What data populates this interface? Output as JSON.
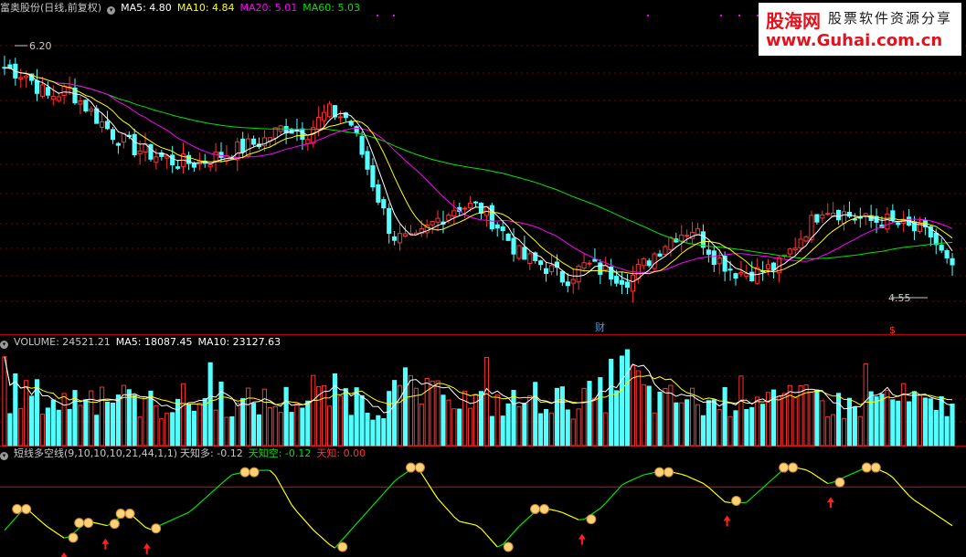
{
  "price_header": {
    "title": "富奥股份(日线,前复权)",
    "ma5": "MA5: 4.80",
    "ma10": "MA10: 4.84",
    "ma20": "MA20: 5.01",
    "ma60": "MA60: 5.03"
  },
  "volume_header": {
    "title": "VOLUME: 24521.21",
    "ma5": "MA5: 18087.45",
    "ma10": "MA10: 23127.63"
  },
  "indicator_header": {
    "title": "短线多空线(9,10,10,10,21,44,1,1)",
    "duo": "天知多: -0.12",
    "kong": "天知空: -0.12",
    "zhi": "天知: 0.00"
  },
  "annotations": {
    "high_label": "6.20",
    "low_label": "4.55",
    "cai_marker": "财",
    "dollar_marker": "$"
  },
  "watermark": {
    "brand": "股海网",
    "slogan": "股票软件资源分享",
    "url": "www.Guhai.com.cn"
  },
  "colors": {
    "up": "#ff3232",
    "down": "#54ffff",
    "ma5": "#ffffff",
    "ma10": "#ffff00",
    "ma20": "#ff00ff",
    "ma60": "#00e600",
    "divider": "#b40000"
  },
  "chart_data": [
    {
      "type": "line",
      "title": "富奥股份(日线,前复权)",
      "series": [
        {
          "name": "MA5",
          "last": 4.8
        },
        {
          "name": "MA10",
          "last": 4.84
        },
        {
          "name": "MA20",
          "last": 5.01
        },
        {
          "name": "MA60",
          "last": 5.03
        }
      ],
      "close_samples": [
        6.05,
        6.0,
        5.85,
        5.9,
        5.75,
        5.6,
        5.5,
        5.45,
        5.4,
        5.4,
        5.45,
        5.5,
        5.55,
        5.65,
        5.6,
        5.75,
        5.7,
        5.3,
        4.9,
        4.85,
        5.0,
        5.1,
        5.1,
        4.95,
        4.75,
        4.7,
        4.6,
        4.7,
        4.65,
        4.6,
        4.75,
        4.9,
        4.95,
        4.75,
        4.65,
        4.65,
        4.7,
        4.9,
        5.1,
        5.05,
        5.0,
        5.0,
        4.95,
        4.9,
        4.65
      ],
      "high_marker": 6.2,
      "low_marker": 4.55,
      "ylim": [
        4.4,
        6.4
      ]
    },
    {
      "type": "bar",
      "title": "VOLUME",
      "series": [
        {
          "name": "VOLUME",
          "last": 24521.21
        },
        {
          "name": "MA5",
          "last": 18087.45
        },
        {
          "name": "MA10",
          "last": 23127.63
        }
      ],
      "volume_samples": [
        26000,
        28000,
        24000,
        22000,
        27000,
        25000,
        21000,
        23000,
        20000,
        24000,
        22000,
        28000,
        19000,
        24000,
        21000,
        25000,
        23000,
        27000,
        26000,
        20000,
        25000,
        31000,
        24000,
        30000,
        22000,
        23000,
        21000,
        24000,
        26000,
        22000,
        24000,
        26000,
        48000,
        27000,
        22000,
        25000,
        21000,
        23000,
        26000,
        30000,
        24000,
        22000,
        25000,
        21000,
        20000,
        26000,
        24000,
        23000,
        18000,
        24521
      ],
      "ylim": [
        0,
        50000
      ]
    },
    {
      "type": "line",
      "title": "短线多空线(9,10,10,10,21,44,1,1)",
      "series": [
        {
          "name": "天知多",
          "last": -0.12
        },
        {
          "name": "天知空",
          "last": -0.12
        },
        {
          "name": "天知",
          "last": 0.0
        }
      ],
      "line_samples": [
        0.25,
        0.5,
        0.3,
        0.15,
        0.35,
        0.3,
        0.45,
        0.25,
        0.35,
        0.45,
        0.65,
        0.85,
        0.9,
        0.9,
        0.5,
        0.25,
        0.05,
        0.3,
        0.55,
        0.8,
        0.95,
        0.6,
        0.35,
        0.3,
        0.05,
        0.3,
        0.5,
        0.45,
        0.35,
        0.5,
        0.75,
        0.85,
        0.9,
        0.85,
        0.75,
        0.55,
        0.55,
        0.75,
        0.95,
        0.9,
        0.75,
        0.85,
        0.95,
        0.85,
        0.6,
        0.45,
        0.3
      ],
      "ylim": [
        0,
        1
      ],
      "zero_line": 0.72
    }
  ]
}
